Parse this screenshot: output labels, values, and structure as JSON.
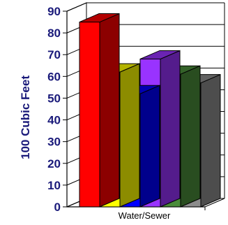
{
  "chart_data": {
    "type": "bar",
    "style": "3d-clustered",
    "categories": [
      "Water/Sewer"
    ],
    "series": [
      {
        "values": [
          85
        ],
        "color": "#ff0000"
      },
      {
        "values": [
          62
        ],
        "color": "#ffff00"
      },
      {
        "values": [
          52
        ],
        "color": "#0000ff"
      },
      {
        "values": [
          68
        ],
        "color": "#9933ff"
      },
      {
        "values": [
          61
        ],
        "color": "#4a8c3a"
      },
      {
        "values": [
          57
        ],
        "color": "#8c8c8c"
      }
    ],
    "title": "",
    "xlabel": "",
    "ylabel": "100 Cubic Feet",
    "ylim": [
      0,
      90
    ],
    "yticks": [
      "0",
      "10",
      "20",
      "30",
      "40",
      "50",
      "60",
      "70",
      "80",
      "90"
    ],
    "grid": true,
    "legend": "none"
  }
}
